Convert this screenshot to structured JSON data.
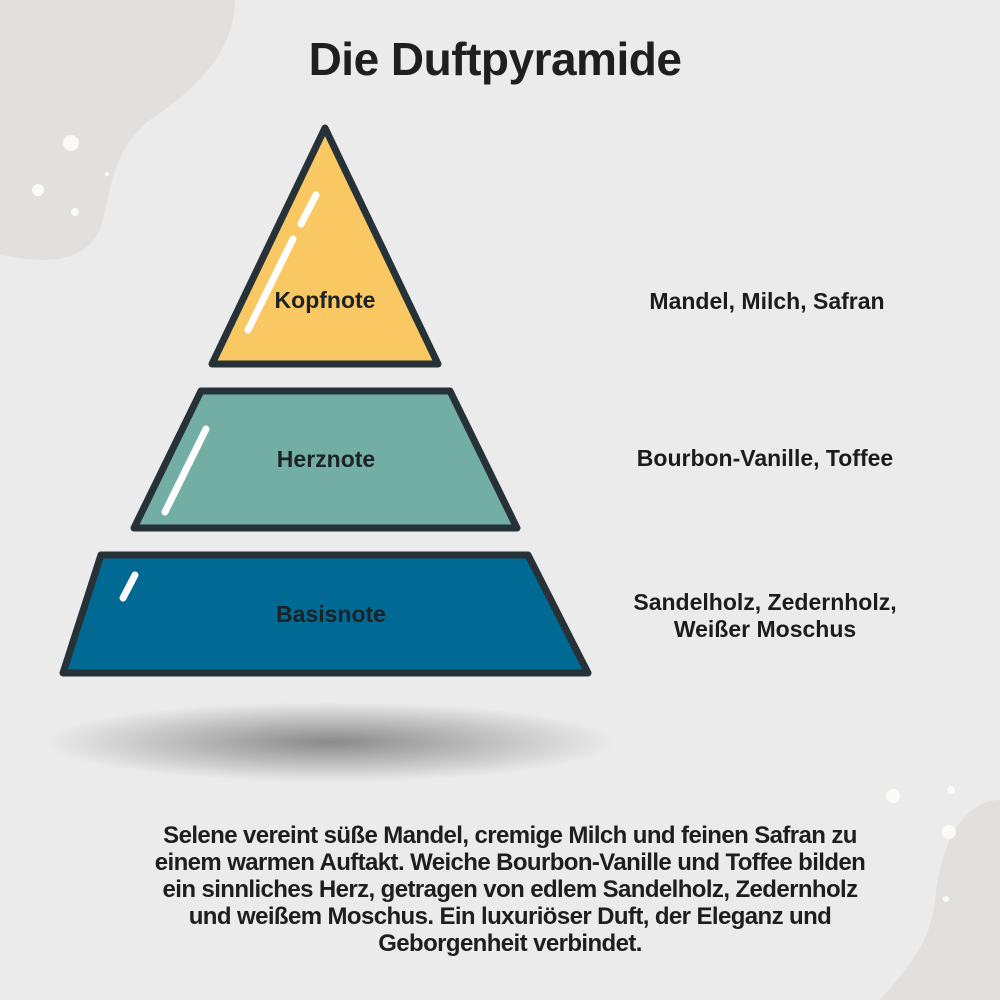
{
  "title": "Die Duftpyramide",
  "colors": {
    "background": "#ebebeb",
    "kopfnote": "#f9c862",
    "herznote": "#72aea4",
    "basisnote": "#006a94",
    "outline": "#263238"
  },
  "pyramid": [
    {
      "level": "Kopfnote",
      "notes": [
        "Mandel, Milch, Safran"
      ]
    },
    {
      "level": "Herznote",
      "notes": [
        "Bourbon-Vanille, Toffee"
      ]
    },
    {
      "level": "Basisnote",
      "notes": [
        "Sandelholz, Zedernholz,",
        "Weißer Moschus"
      ]
    }
  ],
  "description": [
    "Selene vereint süße Mandel, cremige Milch und feinen Safran zu",
    "einem warmen Auftakt. Weiche Bourbon-Vanille und Toffee bilden",
    "ein sinnliches Herz, getragen von edlem Sandelholz, Zedernholz",
    "und weißem Moschus. Ein luxuriöser Duft, der Eleganz und",
    "Geborgenheit verbindet."
  ]
}
